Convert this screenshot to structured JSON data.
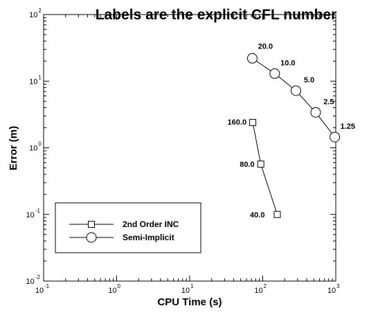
{
  "chart_data": {
    "type": "scatter",
    "title": "Labels are the explicit CFL number",
    "xlabel": "CPU Time (s)",
    "ylabel": "Error (m)",
    "x_scale": "log",
    "y_scale": "log",
    "xlim": [
      0.1,
      1000
    ],
    "ylim": [
      0.01,
      100
    ],
    "x_ticks": [
      {
        "value": 0.1,
        "base": "10",
        "exp": "-1"
      },
      {
        "value": 1,
        "base": "10",
        "exp": "0"
      },
      {
        "value": 10,
        "base": "10",
        "exp": "1"
      },
      {
        "value": 100,
        "base": "10",
        "exp": "2"
      },
      {
        "value": 1000,
        "base": "10",
        "exp": "3"
      }
    ],
    "y_ticks": [
      {
        "value": 0.01,
        "base": "10",
        "exp": "-2"
      },
      {
        "value": 0.1,
        "base": "10",
        "exp": "-1"
      },
      {
        "value": 1,
        "base": "10",
        "exp": "0"
      },
      {
        "value": 10,
        "base": "10",
        "exp": "1"
      },
      {
        "value": 100,
        "base": "10",
        "exp": "2"
      }
    ],
    "grid": false,
    "legend_position": "bottom-left",
    "series": [
      {
        "name": "2nd Order INC",
        "marker": "square",
        "points": [
          {
            "x": 73,
            "y": 2.4,
            "label": "160.0"
          },
          {
            "x": 94,
            "y": 0.57,
            "label": "80.0"
          },
          {
            "x": 158,
            "y": 0.1,
            "label": "40.0"
          }
        ]
      },
      {
        "name": "Semi-Implicit",
        "marker": "circle",
        "points": [
          {
            "x": 72,
            "y": 22,
            "label": "20.0"
          },
          {
            "x": 146,
            "y": 13,
            "label": "10.0"
          },
          {
            "x": 285,
            "y": 7.2,
            "label": "5.0"
          },
          {
            "x": 530,
            "y": 3.4,
            "label": "2.5"
          },
          {
            "x": 970,
            "y": 1.45,
            "label": "1.25"
          }
        ]
      }
    ]
  }
}
